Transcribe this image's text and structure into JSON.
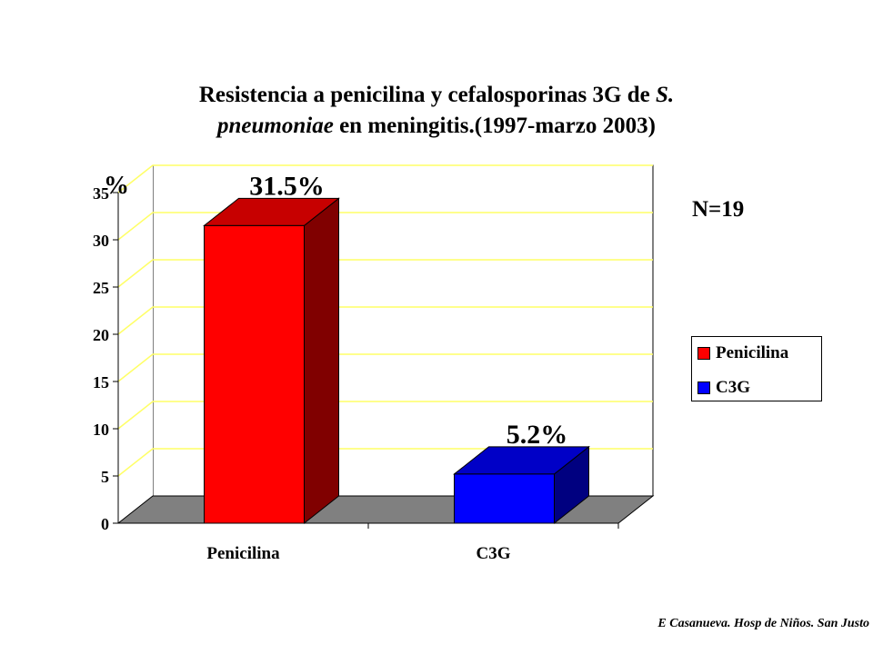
{
  "title": {
    "part1": "Resistencia a penicilina y cefalosporinas 3G de ",
    "italic1": "S.",
    "italic2": "pneumoniae",
    "part2": " en meningitis.(1997-marzo 2003)"
  },
  "note": "N=19",
  "credit": "E Casanueva. Hosp de Niños. San Justo",
  "chart_data": {
    "type": "bar",
    "categories": [
      "Penicilina",
      "C3G"
    ],
    "series": [
      {
        "name": "Penicilina",
        "color": "#ff0000",
        "values": [
          31.5,
          null
        ],
        "data_label": "31.5%"
      },
      {
        "name": "C3G",
        "color": "#0000ff",
        "values": [
          null,
          5.2
        ],
        "data_label": "5.2%"
      }
    ],
    "ylabel": "%",
    "ylim": [
      0,
      35
    ],
    "yticks": [
      0,
      5,
      10,
      15,
      20,
      25,
      30,
      35
    ],
    "grid": true,
    "legend": "right"
  }
}
